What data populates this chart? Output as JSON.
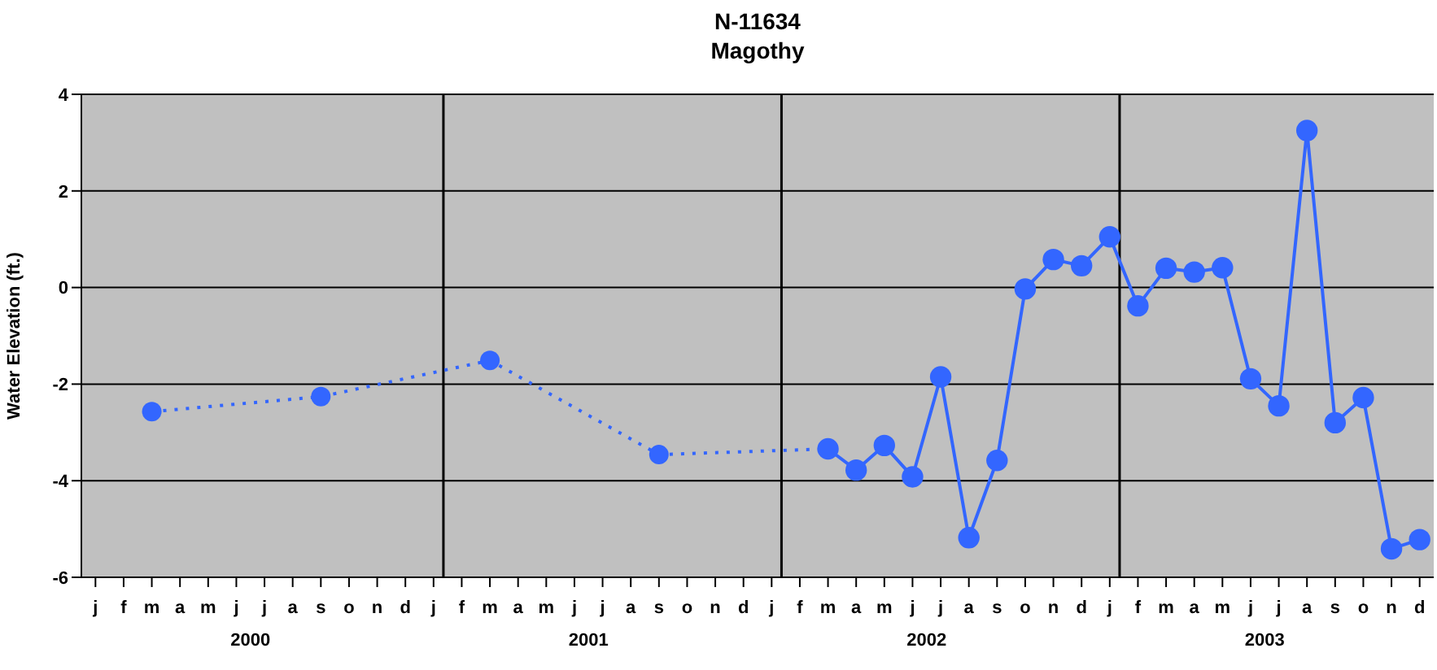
{
  "chart_data": {
    "type": "line",
    "title": "N-11634",
    "subtitle": "Magothy",
    "ylabel": "Water Elevation (ft.)",
    "categories": [
      "j",
      "f",
      "m",
      "a",
      "m",
      "j",
      "j",
      "a",
      "s",
      "o",
      "n",
      "d",
      "j",
      "f",
      "m",
      "a",
      "m",
      "j",
      "j",
      "a",
      "s",
      "o",
      "n",
      "d",
      "j",
      "f",
      "m",
      "a",
      "m",
      "j",
      "j",
      "a",
      "s",
      "o",
      "n",
      "d",
      "j",
      "f",
      "m",
      "a",
      "m",
      "j",
      "j",
      "a",
      "s",
      "o",
      "n",
      "d"
    ],
    "ylim": [
      -6,
      4
    ],
    "yticks": [
      -6,
      -4,
      -2,
      0,
      2,
      4
    ],
    "grid": "y",
    "marker": "circle",
    "annotations": [
      "2000",
      "2001",
      "2002",
      "2003"
    ],
    "series": [
      {
        "color": "#3366ff",
        "line_style": "dotted",
        "values": [
          null,
          null,
          -2.57,
          null,
          null,
          null,
          null,
          null,
          -2.26,
          null,
          null,
          null,
          null,
          null,
          -1.51,
          null,
          null,
          null,
          null,
          null,
          -3.46,
          null,
          null,
          null,
          null,
          null,
          -3.34,
          null,
          null,
          null,
          null,
          null,
          null,
          null,
          null,
          null,
          null,
          null,
          null,
          null,
          null,
          null,
          null,
          null,
          null,
          null,
          null,
          null
        ]
      },
      {
        "color": "#3366ff",
        "line_style": "solid",
        "values": [
          null,
          null,
          null,
          null,
          null,
          null,
          null,
          null,
          null,
          null,
          null,
          null,
          null,
          null,
          null,
          null,
          null,
          null,
          null,
          null,
          null,
          null,
          null,
          null,
          null,
          null,
          -3.34,
          -3.78,
          -3.27,
          -3.92,
          -1.85,
          -5.18,
          -3.58,
          -0.03,
          0.58,
          0.45,
          1.05,
          -0.38,
          0.4,
          0.32,
          0.41,
          -1.89,
          -2.45,
          3.25,
          -2.8,
          -2.28,
          -5.41,
          -5.22
        ]
      }
    ]
  }
}
